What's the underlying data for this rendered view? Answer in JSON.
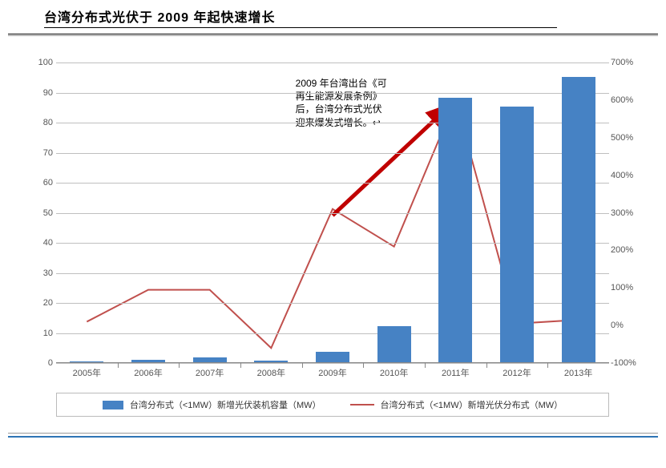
{
  "title": "台湾分布式光伏于 2009 年起快速增长",
  "chart": {
    "type": "bar+line-dual-axis",
    "categories": [
      "2005年",
      "2006年",
      "2007年",
      "2008年",
      "2009年",
      "2010年",
      "2011年",
      "2012年",
      "2013年"
    ],
    "bars": {
      "values": [
        0.4,
        0.7,
        1.5,
        0.6,
        3.5,
        12,
        88,
        85,
        95
      ],
      "color": "#4682c4",
      "bar_width_frac": 0.55
    },
    "line": {
      "values_pct": [
        10,
        95,
        95,
        -60,
        310,
        210,
        600,
        5,
        15
      ],
      "color": "#c0504d",
      "stroke_width": 2
    },
    "y_left": {
      "min": 0,
      "max": 100,
      "step": 10,
      "label_fontsize": 11
    },
    "y_right": {
      "min": -100,
      "max": 700,
      "step": 100,
      "suffix": "%",
      "label_fontsize": 11
    },
    "grid_color": "#bfbfbf",
    "background_color": "#ffffff",
    "axis_font_color": "#555555"
  },
  "annotation": {
    "text_lines": [
      "2009 年台湾出台《可",
      "再生能源发展条例》",
      "后，台湾分布式光伏",
      "迎来爆发式增长。↩"
    ],
    "arrow_color": "#c00000"
  },
  "legend": {
    "bar_label": "台湾分布式（<1MW）新增光伏装机容量（MW）",
    "line_label": "台湾分布式（<1MW）新增光伏分布式（MW）"
  }
}
